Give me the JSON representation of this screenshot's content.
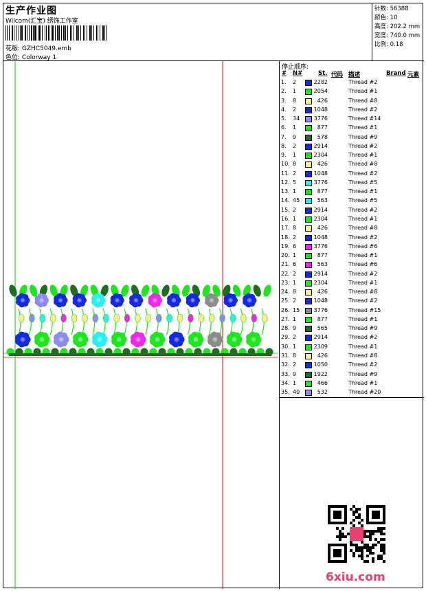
{
  "header": {
    "title": "生产作业图",
    "company": "Wilcom(汇宝) 绣饰工作室",
    "design_label": "花版:",
    "design_value": "GZHC5049.emb",
    "colorway_label": "色位:",
    "colorway_value": "Colorway 1"
  },
  "stats": [
    {
      "label": "针数:",
      "value": "56388"
    },
    {
      "label": "颜色:",
      "value": "10"
    },
    {
      "label": "高度:",
      "value": "202.2 mm"
    },
    {
      "label": "宽度:",
      "value": "740.0 mm"
    },
    {
      "label": "比例:",
      "value": "0.18"
    }
  ],
  "stop_sequence": {
    "title": "停止顺序:",
    "columns": [
      "#",
      "N#",
      "St.",
      "代码",
      "描述",
      "Brand",
      "元素"
    ],
    "rows": [
      {
        "idx": "1.",
        "n": "2",
        "color": "#1428e6",
        "st": "2282",
        "desc": "Thread #2"
      },
      {
        "idx": "2.",
        "n": "1",
        "color": "#1ee61e",
        "st": "2054",
        "desc": "Thread #1"
      },
      {
        "idx": "3.",
        "n": "8",
        "color": "#f5f08c",
        "st": "426",
        "desc": "Thread #8"
      },
      {
        "idx": "4.",
        "n": "2",
        "color": "#1428e6",
        "st": "1048",
        "desc": "Thread #2"
      },
      {
        "idx": "5.",
        "n": "34",
        "color": "#8c8cf0",
        "st": "3776",
        "desc": "Thread #14"
      },
      {
        "idx": "6.",
        "n": "1",
        "color": "#1ee61e",
        "st": "877",
        "desc": "Thread #1"
      },
      {
        "idx": "7.",
        "n": "9",
        "color": "#1e6e1e",
        "st": "578",
        "desc": "Thread #9"
      },
      {
        "idx": "8.",
        "n": "2",
        "color": "#1428e6",
        "st": "2914",
        "desc": "Thread #2"
      },
      {
        "idx": "9.",
        "n": "1",
        "color": "#1ee61e",
        "st": "2304",
        "desc": "Thread #1"
      },
      {
        "idx": "10.",
        "n": "8",
        "color": "#f5f08c",
        "st": "426",
        "desc": "Thread #8"
      },
      {
        "idx": "11.",
        "n": "2",
        "color": "#1428e6",
        "st": "1048",
        "desc": "Thread #2"
      },
      {
        "idx": "12.",
        "n": "5",
        "color": "#28f0f0",
        "st": "3776",
        "desc": "Thread #5"
      },
      {
        "idx": "13.",
        "n": "1",
        "color": "#1ee61e",
        "st": "877",
        "desc": "Thread #1"
      },
      {
        "idx": "14.",
        "n": "45",
        "color": "#28f0f0",
        "st": "563",
        "desc": "Thread #5"
      },
      {
        "idx": "15.",
        "n": "2",
        "color": "#1428e6",
        "st": "2914",
        "desc": "Thread #2"
      },
      {
        "idx": "16.",
        "n": "1",
        "color": "#1ee61e",
        "st": "2304",
        "desc": "Thread #1"
      },
      {
        "idx": "17.",
        "n": "8",
        "color": "#f5f08c",
        "st": "426",
        "desc": "Thread #8"
      },
      {
        "idx": "18.",
        "n": "2",
        "color": "#1428e6",
        "st": "1048",
        "desc": "Thread #2"
      },
      {
        "idx": "19.",
        "n": "6",
        "color": "#f028e6",
        "st": "3776",
        "desc": "Thread #6"
      },
      {
        "idx": "20.",
        "n": "1",
        "color": "#1ee61e",
        "st": "877",
        "desc": "Thread #1"
      },
      {
        "idx": "21.",
        "n": "6",
        "color": "#f028e6",
        "st": "563",
        "desc": "Thread #6"
      },
      {
        "idx": "22.",
        "n": "2",
        "color": "#1428e6",
        "st": "2914",
        "desc": "Thread #2"
      },
      {
        "idx": "23.",
        "n": "1",
        "color": "#1ee61e",
        "st": "2304",
        "desc": "Thread #1"
      },
      {
        "idx": "24.",
        "n": "8",
        "color": "#f5f08c",
        "st": "426",
        "desc": "Thread #8"
      },
      {
        "idx": "25.",
        "n": "2",
        "color": "#1428e6",
        "st": "1048",
        "desc": "Thread #2"
      },
      {
        "idx": "26.",
        "n": "15",
        "color": "#8c8c8c",
        "st": "3776",
        "desc": "Thread #15"
      },
      {
        "idx": "27.",
        "n": "1",
        "color": "#1ee61e",
        "st": "877",
        "desc": "Thread #1"
      },
      {
        "idx": "28.",
        "n": "9",
        "color": "#1e6e1e",
        "st": "565",
        "desc": "Thread #9"
      },
      {
        "idx": "29.",
        "n": "2",
        "color": "#1428e6",
        "st": "2914",
        "desc": "Thread #2"
      },
      {
        "idx": "30.",
        "n": "1",
        "color": "#1ee61e",
        "st": "2309",
        "desc": "Thread #1"
      },
      {
        "idx": "31.",
        "n": "8",
        "color": "#f5f08c",
        "st": "426",
        "desc": "Thread #8"
      },
      {
        "idx": "32.",
        "n": "2",
        "color": "#1428e6",
        "st": "1050",
        "desc": "Thread #2"
      },
      {
        "idx": "33.",
        "n": "9",
        "color": "#1e6e1e",
        "st": "1922",
        "desc": "Thread #9"
      },
      {
        "idx": "34.",
        "n": "1",
        "color": "#1ee61e",
        "st": "466",
        "desc": "Thread #1"
      },
      {
        "idx": "35.",
        "n": "40",
        "color": "#8c8cf0",
        "st": "532",
        "desc": "Thread #20"
      }
    ]
  },
  "watermark": {
    "logo_text": "6xiu.com"
  },
  "palette": {
    "blue": "#1428e6",
    "green": "#1ee61e",
    "dark_green": "#1e6e1e",
    "yellow": "#f5f08c",
    "lavender": "#8c8cf0",
    "cyan": "#28f0f0",
    "magenta": "#f028e6",
    "gray": "#8c8c8c",
    "guide_green": "#00cc00",
    "guide_red": "#e00000"
  }
}
